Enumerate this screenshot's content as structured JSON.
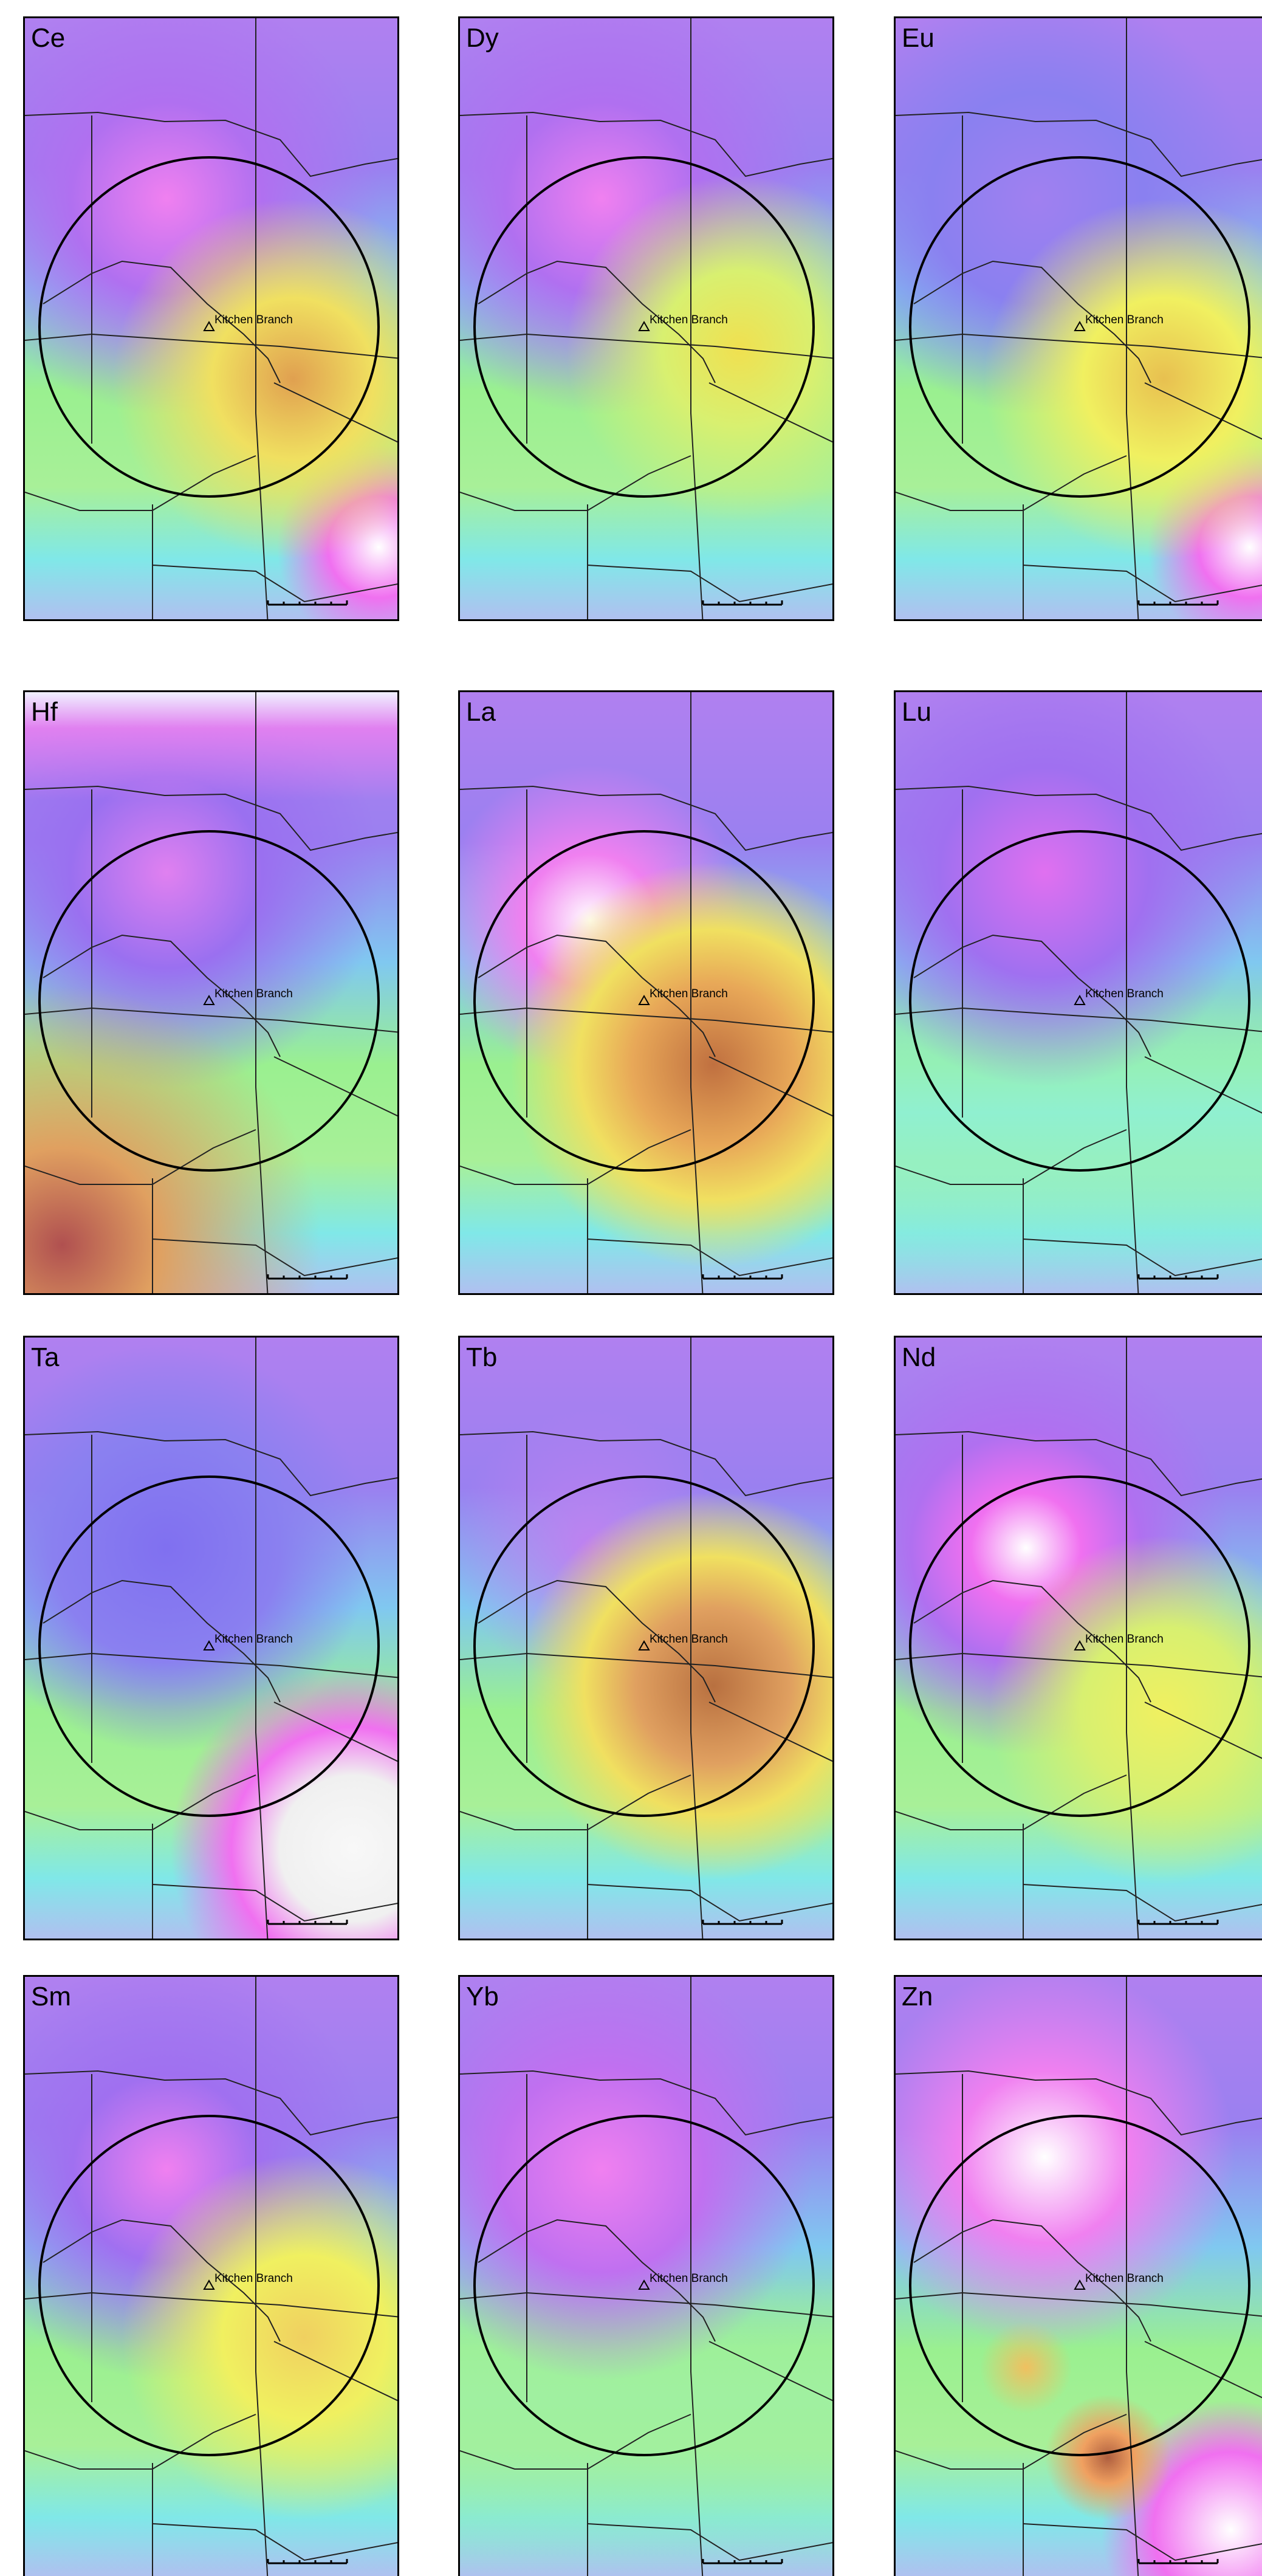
{
  "panels": [
    {
      "label": "Ce",
      "site": "Kitchen Branch"
    },
    {
      "label": "Dy",
      "site": "Kitchen Branch"
    },
    {
      "label": "Eu",
      "site": "Kitchen Branch"
    },
    {
      "label": "Hf",
      "site": "Kitchen Branch"
    },
    {
      "label": "La",
      "site": "Kitchen Branch"
    },
    {
      "label": "Lu",
      "site": "Kitchen Branch"
    },
    {
      "label": "Ta",
      "site": "Kitchen Branch"
    },
    {
      "label": "Tb",
      "site": "Kitchen Branch"
    },
    {
      "label": "Nd",
      "site": "Kitchen Branch"
    },
    {
      "label": "Sm",
      "site": "Kitchen Branch"
    },
    {
      "label": "Yb",
      "site": "Kitchen Branch"
    },
    {
      "label": "Zn",
      "site": "Kitchen Branch"
    }
  ]
}
